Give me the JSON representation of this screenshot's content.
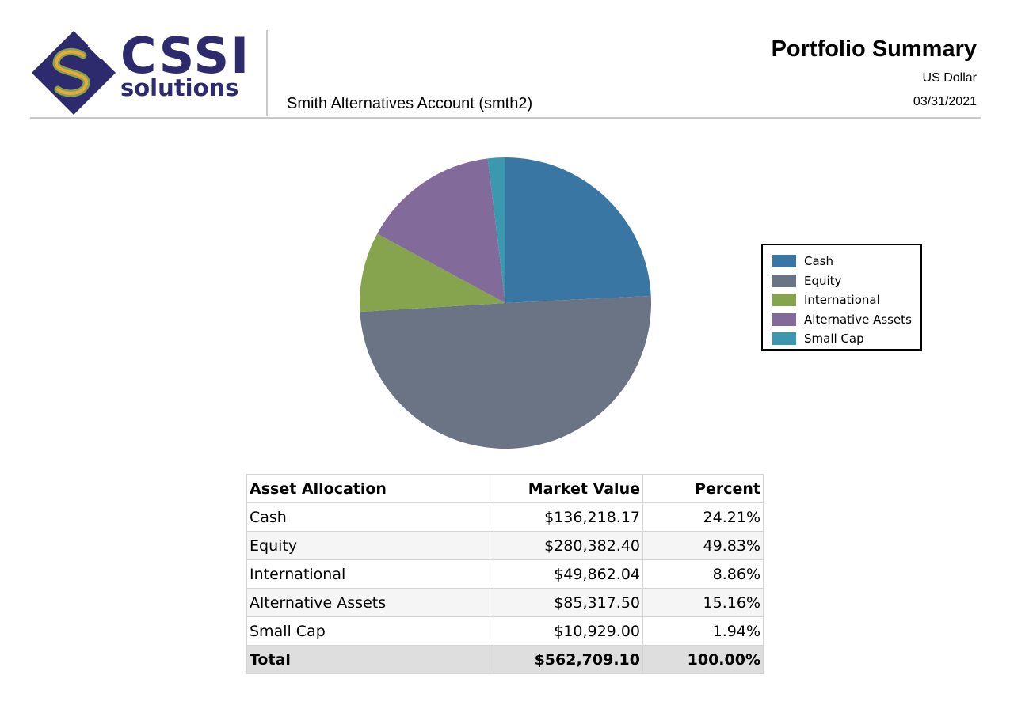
{
  "header": {
    "logo_main": "CSSI",
    "logo_sub": "solutions",
    "account": "Smith Alternatives Account (smth2)",
    "title": "Portfolio Summary",
    "currency": "US Dollar",
    "date": "03/31/2021"
  },
  "chart_data": {
    "type": "pie",
    "categories": [
      "Cash",
      "Equity",
      "International",
      "Alternative Assets",
      "Small Cap"
    ],
    "values": [
      24.21,
      49.83,
      8.86,
      15.16,
      1.94
    ],
    "colors": [
      "#3a76a3",
      "#6a7484",
      "#86a34d",
      "#826a9a",
      "#3b98ae"
    ],
    "legend_position": "right",
    "start": "top, clockwise"
  },
  "table": {
    "headers": [
      "Asset Allocation",
      "Market Value",
      "Percent"
    ],
    "rows": [
      [
        "Cash",
        "$136,218.17",
        "24.21%"
      ],
      [
        "Equity",
        "$280,382.40",
        "49.83%"
      ],
      [
        "International",
        "$49,862.04",
        "8.86%"
      ],
      [
        "Alternative Assets",
        "$85,317.50",
        "15.16%"
      ],
      [
        "Small Cap",
        "$10,929.00",
        "1.94%"
      ]
    ],
    "total": [
      "Total",
      "$562,709.10",
      "100.00%"
    ]
  }
}
